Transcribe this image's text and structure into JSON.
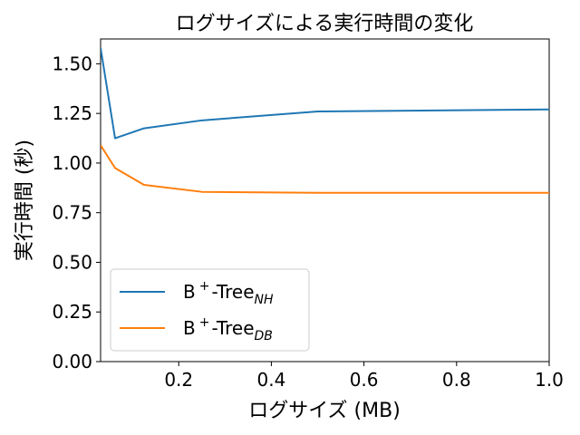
{
  "chart_data": {
    "type": "line",
    "title": "ログサイズによる実行時間の変化",
    "xlabel": "ログサイズ (MB)",
    "ylabel": "実行時間 (秒)",
    "xlim": [
      0.03125,
      1.0
    ],
    "ylim": [
      0.0,
      1.625
    ],
    "xticks": [
      0.2,
      0.4,
      0.6,
      0.8,
      1.0
    ],
    "xtick_labels": [
      "0.2",
      "0.4",
      "0.6",
      "0.8",
      "1.0"
    ],
    "yticks": [
      0.0,
      0.25,
      0.5,
      0.75,
      1.0,
      1.25,
      1.5
    ],
    "ytick_labels": [
      "0.00",
      "0.25",
      "0.50",
      "0.75",
      "1.00",
      "1.25",
      "1.50"
    ],
    "grid": false,
    "legend_position": "lower-left",
    "series": [
      {
        "name_main": "B",
        "name_sup": "+",
        "name_rest": "-Tree",
        "name_sub": "NH",
        "color": "#1f77b4",
        "x": [
          0.03125,
          0.0625,
          0.125,
          0.25,
          0.5,
          1.0
        ],
        "values": [
          1.58,
          1.125,
          1.175,
          1.215,
          1.26,
          1.27
        ]
      },
      {
        "name_main": "B",
        "name_sup": "+",
        "name_rest": "-Tree",
        "name_sub": "DB",
        "color": "#ff7f0e",
        "x": [
          0.03125,
          0.0625,
          0.125,
          0.25,
          0.5,
          1.0
        ],
        "values": [
          1.09,
          0.975,
          0.89,
          0.855,
          0.85,
          0.85
        ]
      }
    ]
  }
}
